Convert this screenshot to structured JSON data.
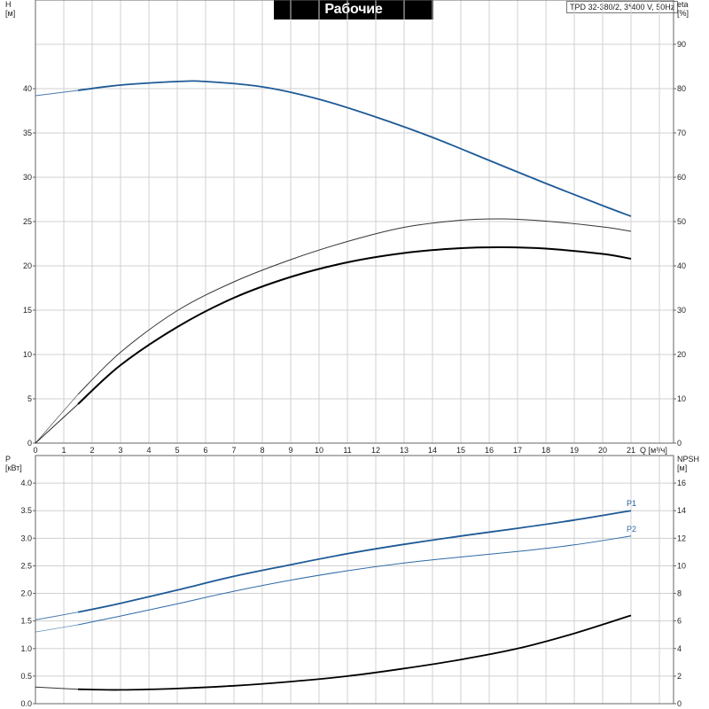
{
  "header": {
    "title": "Рабочие характеристики",
    "model": "TPD 32-380/2, 3*400 V, 50Hz"
  },
  "colors": {
    "blue": "#1e5a96",
    "blue_light": "#2f6aa6",
    "black": "#000000",
    "grid": "#d0d0d0"
  },
  "chart_data": [
    {
      "type": "line",
      "panel": "top",
      "left_axis": {
        "label": "H",
        "unit": "[м]",
        "ylim": [
          0,
          50
        ],
        "ticks": [
          0,
          5,
          10,
          15,
          20,
          25,
          30,
          35,
          40
        ]
      },
      "right_axis": {
        "label": "eta",
        "unit": "[%]",
        "ylim": [
          0,
          100
        ],
        "ticks": [
          0,
          10,
          20,
          30,
          40,
          50,
          60,
          70,
          80,
          90
        ]
      },
      "x_axis": {
        "label": "Q [м³/ч]",
        "xlim": [
          0,
          22.5
        ],
        "ticks": [
          0,
          1,
          2,
          3,
          4,
          5,
          6,
          7,
          8,
          9,
          10,
          11,
          12,
          13,
          14,
          15,
          16,
          17,
          18,
          19,
          20,
          21
        ]
      },
      "grid": true,
      "series": [
        {
          "axis": "left",
          "color": "#1e5a96",
          "width": 1.8,
          "ext_until": 1.5,
          "x": [
            0,
            1.5,
            3,
            5,
            6,
            8,
            10,
            12,
            14,
            16,
            18,
            20,
            21
          ],
          "y": [
            39.2,
            39.8,
            40.4,
            40.8,
            40.8,
            40.2,
            38.8,
            36.8,
            34.5,
            31.9,
            29.3,
            26.8,
            25.6
          ]
        },
        {
          "axis": "right",
          "color": "#333333",
          "width": 1.0,
          "ext_until": 1.5,
          "x": [
            0,
            1.5,
            3,
            5,
            7,
            9,
            11,
            13,
            15,
            16.5,
            18,
            20,
            21
          ],
          "y": [
            0,
            11,
            20.5,
            29.9,
            36.4,
            41.4,
            45.5,
            48.7,
            50.3,
            50.6,
            50.1,
            48.8,
            47.8
          ]
        },
        {
          "axis": "right",
          "color": "#000000",
          "width": 2.0,
          "ext_until": 1.5,
          "x": [
            0,
            1.5,
            3,
            5,
            7,
            9,
            11,
            13,
            15,
            16.5,
            18,
            20,
            21
          ],
          "y": [
            0,
            8.8,
            17.6,
            26.2,
            32.8,
            37.5,
            40.8,
            42.9,
            44,
            44.2,
            43.9,
            42.7,
            41.6
          ]
        }
      ]
    },
    {
      "type": "line",
      "panel": "bottom",
      "left_axis": {
        "label": "P",
        "unit": "[кВт]",
        "ylim": [
          0,
          4.5
        ],
        "ticks": [
          "0.0",
          "0.5",
          "1.0",
          "1.5",
          "2.0",
          "2.5",
          "3.0",
          "3.5",
          "4.0"
        ]
      },
      "right_axis": {
        "label": "NPSH",
        "unit": "[м]",
        "ylim": [
          0,
          18
        ],
        "ticks": [
          0,
          2,
          4,
          6,
          8,
          10,
          12,
          14,
          16
        ]
      },
      "x_axis": {
        "xlim": [
          0,
          22.5
        ]
      },
      "grid": true,
      "series": [
        {
          "name": "P1",
          "axis": "left",
          "color": "#1e5a96",
          "width": 1.8,
          "ext_until": 1.5,
          "x": [
            0,
            1.5,
            3,
            5,
            7,
            9,
            11,
            13,
            15,
            17,
            19,
            21
          ],
          "y": [
            1.52,
            1.66,
            1.82,
            2.06,
            2.31,
            2.52,
            2.72,
            2.89,
            3.04,
            3.18,
            3.33,
            3.5
          ]
        },
        {
          "name": "P2",
          "axis": "left",
          "color": "#2f6aa6",
          "width": 1.0,
          "ext_until": 1.5,
          "x": [
            0,
            1.5,
            3,
            5,
            7,
            9,
            11,
            13,
            15,
            17,
            19,
            21
          ],
          "y": [
            1.3,
            1.43,
            1.59,
            1.81,
            2.04,
            2.24,
            2.41,
            2.55,
            2.66,
            2.76,
            2.88,
            3.04
          ]
        },
        {
          "axis": "right",
          "color": "#000000",
          "width": 1.8,
          "ext_until": 1.5,
          "x": [
            0,
            1.5,
            3,
            5,
            7,
            9,
            11,
            13,
            15,
            17,
            19,
            21
          ],
          "y": [
            1.2,
            1.05,
            1.0,
            1.1,
            1.3,
            1.6,
            2.0,
            2.55,
            3.2,
            4.0,
            5.1,
            6.4
          ]
        }
      ]
    }
  ]
}
